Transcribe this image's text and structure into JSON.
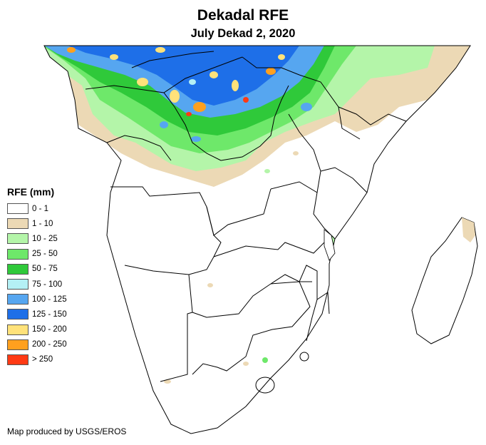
{
  "map": {
    "title": "Dekadal RFE",
    "subtitle": "July Dekad 2, 2020",
    "credit": "Map produced by USGS/EROS"
  },
  "legend": {
    "title": "RFE (mm)",
    "items": [
      {
        "label": "0 - 1",
        "color": "#ffffff"
      },
      {
        "label": "1 - 10",
        "color": "#ecd9b5"
      },
      {
        "label": "10 - 25",
        "color": "#b4f5a9"
      },
      {
        "label": "25 - 50",
        "color": "#6ee86a"
      },
      {
        "label": "50 - 75",
        "color": "#2fc93a"
      },
      {
        "label": "75 - 100",
        "color": "#b4f0f5"
      },
      {
        "label": "100 - 125",
        "color": "#56a6f0"
      },
      {
        "label": "125 - 150",
        "color": "#1e6fe8"
      },
      {
        "label": "150 - 200",
        "color": "#ffe27a"
      },
      {
        "label": "200 - 250",
        "color": "#ffa01e"
      },
      {
        "label": "> 250",
        "color": "#ff3a14"
      }
    ]
  }
}
